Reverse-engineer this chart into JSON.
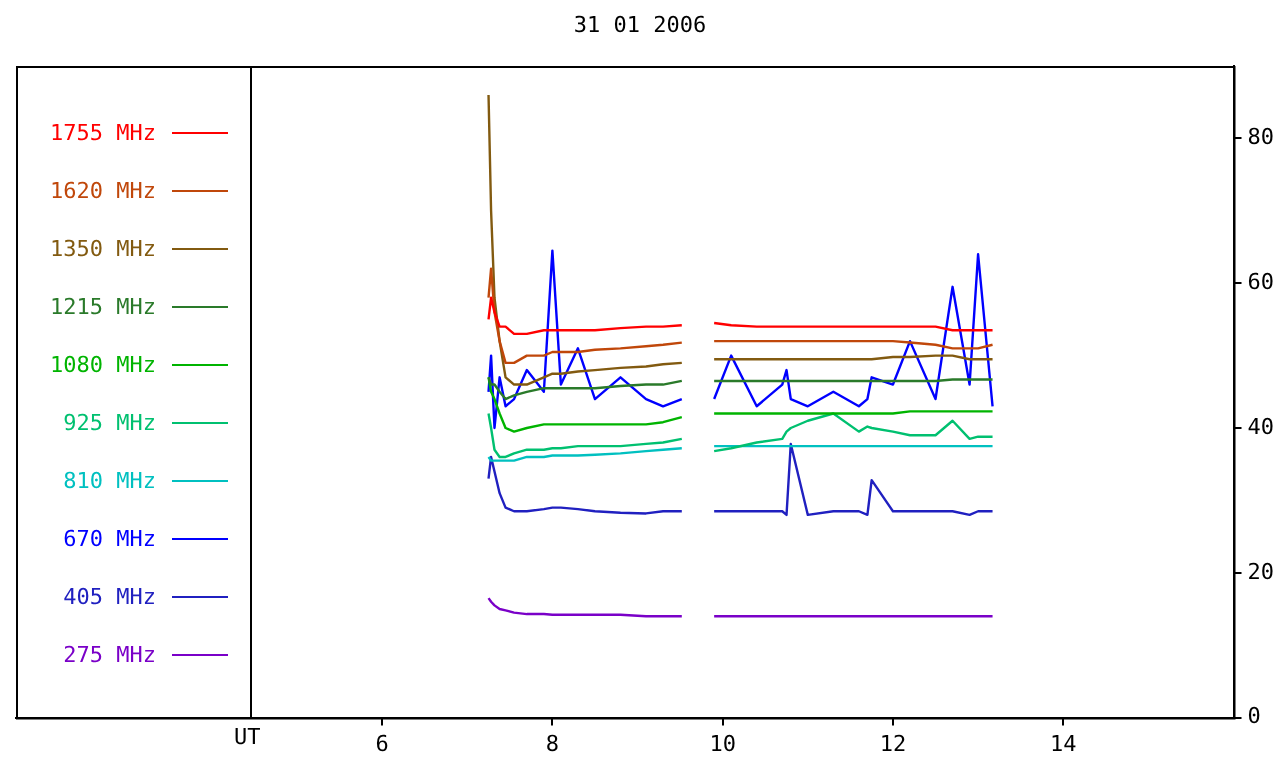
{
  "chart_data": {
    "type": "line",
    "title": "31 01 2006",
    "xlabel": "UT",
    "legend": "left",
    "grid": false,
    "marker": "none",
    "line_style": "solid",
    "xlim": [
      1.7,
      16
    ],
    "ref_lines": [
      {
        "axis": "x",
        "value": 4.45,
        "color": "#000000"
      }
    ],
    "xticks": [
      6,
      8,
      10,
      12,
      14
    ],
    "ylim": [
      0,
      90
    ],
    "yticks": [
      0,
      20,
      40,
      60,
      80
    ],
    "x": [
      7.25,
      7.28,
      7.32,
      7.38,
      7.45,
      7.55,
      7.7,
      7.9,
      8.0,
      8.1,
      8.3,
      8.5,
      8.8,
      9.1,
      9.3,
      9.52,
      9.7,
      9.9,
      10.1,
      10.4,
      10.7,
      10.75,
      10.8,
      11.0,
      11.3,
      11.6,
      11.7,
      11.75,
      12.0,
      12.2,
      12.5,
      12.7,
      12.9,
      13.0,
      13.17
    ],
    "series": [
      {
        "name": "1755 MHz",
        "color": "#ff0000",
        "values": [
          55,
          58,
          56,
          54,
          54,
          53,
          53,
          53.5,
          53.5,
          53.5,
          53.5,
          53.5,
          53.8,
          54,
          54,
          54.2,
          null,
          54.5,
          54.2,
          54,
          54,
          54,
          54,
          54,
          54,
          54,
          54,
          54,
          54,
          54,
          54,
          53.5,
          53.5,
          53.5,
          53.5
        ]
      },
      {
        "name": "1620 MHz",
        "color": "#c0470a",
        "values": [
          58,
          62,
          56,
          52,
          49,
          49,
          50,
          50,
          50.5,
          50.5,
          50.5,
          50.8,
          51,
          51.3,
          51.5,
          51.8,
          null,
          52,
          52,
          52,
          52,
          52,
          52,
          52,
          52,
          52,
          52,
          52,
          52,
          51.8,
          51.5,
          51,
          51,
          51,
          51.5
        ]
      },
      {
        "name": "1350 MHz",
        "color": "#825a10",
        "values": [
          86,
          70,
          58,
          52,
          47,
          46,
          46,
          47,
          47.5,
          47.5,
          47.8,
          48,
          48.3,
          48.5,
          48.8,
          49,
          null,
          49.5,
          49.5,
          49.5,
          49.5,
          49.5,
          49.5,
          49.5,
          49.5,
          49.5,
          49.5,
          49.5,
          49.8,
          49.8,
          50,
          50,
          49.5,
          49.5,
          49.5
        ]
      },
      {
        "name": "1215 MHz",
        "color": "#2a7a2a",
        "values": [
          47,
          46,
          46,
          45,
          44,
          44.5,
          45,
          45.5,
          45.5,
          45.5,
          45.5,
          45.5,
          45.8,
          46,
          46,
          46.5,
          null,
          46.5,
          46.5,
          46.5,
          46.5,
          46.5,
          46.5,
          46.5,
          46.5,
          46.5,
          46.5,
          46.5,
          46.5,
          46.5,
          46.5,
          46.7,
          46.7,
          46.7,
          46.7
        ]
      },
      {
        "name": "1080 MHz",
        "color": "#00b400",
        "values": [
          47,
          45,
          44,
          42,
          40,
          39.5,
          40,
          40.5,
          40.5,
          40.5,
          40.5,
          40.5,
          40.5,
          40.5,
          40.8,
          41.5,
          null,
          42,
          42,
          42,
          42,
          42,
          42,
          42,
          42,
          42,
          42,
          42,
          42,
          42.3,
          42.3,
          42.3,
          42.3,
          42.3,
          42.3
        ]
      },
      {
        "name": "925 MHz",
        "color": "#00c070",
        "values": [
          42,
          40,
          37,
          36,
          36,
          36.5,
          37,
          37,
          37.2,
          37.2,
          37.5,
          37.5,
          37.5,
          37.8,
          38,
          38.5,
          null,
          36.8,
          37.2,
          38,
          38.5,
          39.5,
          40,
          41,
          42,
          39.5,
          40.2,
          40,
          39.5,
          39,
          39,
          41,
          38.5,
          38.8,
          38.8
        ]
      },
      {
        "name": "810 MHz",
        "color": "#00c0c0",
        "values": [
          36,
          35.5,
          35.5,
          35.5,
          35.5,
          35.5,
          36,
          36,
          36.2,
          36.2,
          36.2,
          36.3,
          36.5,
          36.8,
          37,
          37.2,
          null,
          37.5,
          37.5,
          37.5,
          37.5,
          37.5,
          37.5,
          37.5,
          37.5,
          37.5,
          37.5,
          37.5,
          37.5,
          37.5,
          37.5,
          37.5,
          37.5,
          37.5,
          37.5
        ]
      },
      {
        "name": "670 MHz",
        "color": "#0000ff",
        "values": [
          45,
          50,
          40,
          47,
          43,
          44,
          48,
          45,
          64.5,
          46,
          51,
          44,
          47,
          44,
          43,
          44,
          null,
          44,
          50,
          43,
          46,
          48,
          44,
          43,
          45,
          43,
          44,
          47,
          46,
          52,
          44,
          59.5,
          46,
          64,
          43
        ]
      },
      {
        "name": "405 MHz",
        "color": "#2020c0",
        "values": [
          33,
          36,
          34,
          31,
          29,
          28.5,
          28.5,
          28.8,
          29,
          29,
          28.8,
          28.5,
          28.3,
          28.2,
          28.5,
          28.5,
          null,
          28.5,
          28.5,
          28.5,
          28.5,
          28,
          37.8,
          28,
          28.5,
          28.5,
          28,
          32.8,
          28.5,
          28.5,
          28.5,
          28.5,
          28,
          28.5,
          28.5
        ]
      },
      {
        "name": "275 MHz",
        "color": "#7a00c8",
        "values": [
          16.5,
          16,
          15.5,
          15,
          14.8,
          14.5,
          14.3,
          14.3,
          14.2,
          14.2,
          14.2,
          14.2,
          14.2,
          14,
          14,
          14,
          null,
          14,
          14,
          14,
          14,
          14,
          14,
          14,
          14,
          14,
          14,
          14,
          14,
          14,
          14,
          14,
          14,
          14,
          14
        ]
      }
    ]
  }
}
